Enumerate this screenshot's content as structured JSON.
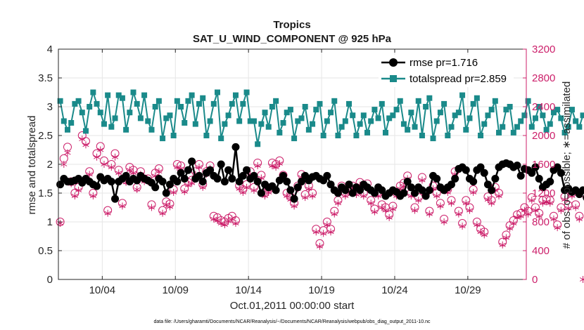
{
  "chart_data": {
    "type": "line",
    "title": "Tropics",
    "subtitle": "SAT_U_WIND_COMPONENT @ 925 hPa",
    "xlabel": "Oct.01,2011 00:00:00 start",
    "ylabel": "rmse and totalspread",
    "y2label": "# of obs: o=possible; ∗=assimilated",
    "footnote": "data file: /Users/gharamti/Documents/NCAR/Reanalysis/~/Documents/NCAR/Reanalysis/webpub/obs_diag_output_2011-10.nc",
    "x_tick_labels": [
      "10/04",
      "10/09",
      "10/14",
      "10/19",
      "10/24",
      "10/29"
    ],
    "x_ticks": [
      4,
      9,
      14,
      19,
      24,
      29
    ],
    "xlim": [
      1,
      33
    ],
    "ylim": [
      0,
      4
    ],
    "y_ticks": [
      0,
      0.5,
      1,
      1.5,
      2,
      2.5,
      3,
      3.5,
      4
    ],
    "y_tick_labels": [
      "0",
      "0.5",
      "1",
      "1.5",
      "2",
      "2.5",
      "3",
      "3.5",
      "4"
    ],
    "y2lim": [
      0,
      3200
    ],
    "y2_ticks": [
      0,
      400,
      800,
      1200,
      1600,
      2000,
      2400,
      2800,
      3200
    ],
    "y2_tick_labels": [
      "0",
      "400",
      "800",
      "1200",
      "1600",
      "2000",
      "2400",
      "2800",
      "3200"
    ],
    "grid": true,
    "legend_position": "top-right",
    "x_step_days": 0.25,
    "x_start_day": 1.125,
    "series": [
      {
        "name": "rmse pr=1.716",
        "axis": "left",
        "color": "#000000",
        "marker": "circle",
        "values": [
          1.65,
          1.75,
          1.7,
          1.7,
          1.72,
          1.75,
          1.68,
          1.75,
          1.7,
          1.65,
          1.62,
          1.78,
          1.72,
          1.75,
          1.7,
          1.4,
          1.7,
          1.75,
          1.8,
          1.7,
          1.75,
          1.72,
          1.8,
          1.75,
          1.72,
          1.68,
          1.6,
          1.75,
          1.7,
          1.5,
          1.65,
          1.75,
          1.7,
          1.85,
          1.75,
          1.9,
          2.05,
          1.75,
          1.8,
          1.7,
          1.85,
          1.9,
          1.8,
          1.75,
          2.0,
          1.7,
          1.9,
          1.75,
          2.3,
          1.7,
          1.8,
          1.9,
          1.75,
          1.8,
          1.7,
          1.5,
          1.65,
          1.6,
          1.62,
          1.55,
          1.72,
          1.8,
          1.7,
          1.55,
          1.4,
          1.6,
          1.7,
          1.8,
          1.72,
          1.78,
          1.8,
          1.75,
          1.72,
          1.8,
          1.65,
          1.55,
          1.5,
          1.6,
          1.55,
          1.65,
          1.5,
          1.6,
          1.55,
          1.65,
          1.6,
          1.55,
          1.5,
          1.6,
          1.55,
          1.45,
          1.5,
          1.55,
          1.52,
          1.45,
          1.5,
          1.7,
          1.6,
          1.5,
          1.6,
          1.55,
          1.45,
          1.55,
          1.8,
          1.75,
          1.6,
          1.55,
          1.6,
          1.65,
          1.75,
          1.92,
          1.95,
          1.9,
          1.75,
          1.7,
          1.9,
          1.95,
          1.85,
          1.65,
          1.55,
          1.75,
          1.95,
          2.0,
          2.02,
          2.0,
          1.95,
          1.98,
          1.8,
          1.92,
          1.9,
          1.85,
          1.95,
          1.75,
          1.6,
          1.65,
          1.7,
          1.9,
          1.95,
          1.85,
          1.55,
          1.58,
          1.52,
          1.55,
          1.48,
          1.55,
          1.42,
          1.38
        ]
      },
      {
        "name": "totalspread pr=2.859",
        "axis": "left",
        "color": "#1a8a8a",
        "marker": "square",
        "values": [
          3.1,
          2.75,
          2.6,
          2.72,
          3.05,
          3.1,
          2.9,
          2.58,
          3.0,
          3.25,
          3.05,
          2.9,
          2.7,
          3.2,
          2.65,
          2.8,
          3.2,
          3.15,
          2.6,
          2.9,
          3.25,
          3.05,
          2.8,
          3.2,
          2.75,
          2.6,
          3.0,
          3.1,
          2.45,
          2.8,
          2.85,
          2.5,
          3.1,
          3.0,
          2.72,
          3.1,
          3.2,
          2.7,
          3.05,
          3.15,
          2.5,
          2.75,
          3.05,
          3.25,
          2.45,
          2.7,
          2.85,
          3.05,
          3.2,
          2.75,
          3.05,
          3.25,
          2.75,
          2.75,
          2.35,
          2.7,
          2.9,
          2.65,
          3.0,
          3.1,
          2.55,
          2.72,
          2.9,
          2.95,
          2.45,
          2.75,
          2.8,
          3.0,
          2.6,
          2.7,
          2.95,
          3.05,
          2.5,
          2.75,
          2.9,
          3.1,
          2.5,
          2.65,
          2.75,
          3.05,
          2.85,
          2.5,
          2.7,
          2.85,
          2.55,
          2.75,
          2.95,
          2.8,
          3.05,
          2.55,
          2.8,
          2.85,
          2.95,
          3.1,
          2.7,
          2.6,
          2.9,
          2.65,
          3.1,
          2.5,
          3.0,
          3.15,
          2.45,
          2.75,
          2.9,
          3.05,
          2.5,
          2.65,
          2.85,
          2.9,
          3.2,
          2.6,
          2.8,
          3.05,
          3.15,
          2.5,
          2.7,
          2.85,
          2.95,
          3.1,
          2.55,
          2.65,
          2.95,
          3.0,
          2.55,
          2.65,
          2.75,
          2.85,
          3.1,
          2.65,
          2.8,
          3.0,
          2.85,
          2.6,
          2.7,
          2.9,
          2.95,
          2.8,
          2.55,
          2.65,
          2.95,
          2.75,
          2.65,
          2.85
        ]
      },
      {
        "name": "possible",
        "axis": "right",
        "color": "#cc1f6a",
        "marker": "circle-open",
        "values": [
          800,
          1680,
          1840,
          1360,
          1200,
          1280,
          2000,
          1920,
          1500,
          1200,
          1750,
          1850,
          1650,
          960,
          1600,
          1750,
          1520,
          1060,
          1380,
          1560,
          1520,
          1280,
          1500,
          1400,
          1400,
          1040,
          1480,
          1540,
          960,
          1080,
          1050,
          1250,
          1600,
          1580,
          1260,
          1350,
          1380,
          1500,
          1600,
          1320,
          1500,
          1580,
          880,
          860,
          820,
          800,
          850,
          880,
          820,
          1300,
          1250,
          1320,
          1500,
          1280,
          1620,
          1450,
          1200,
          1250,
          1620,
          1600,
          1650,
          1450,
          1200,
          1150,
          1060,
          1300,
          1460,
          1180,
          1300,
          1200,
          700,
          500,
          680,
          800,
          700,
          950,
          1100,
          1300,
          1200,
          1250,
          1300,
          1220,
          1350,
          1200,
          1330,
          1100,
          980,
          1200,
          1040,
          1000,
          900,
          1020,
          1200,
          1300,
          1340,
          1440,
          1200,
          1000,
          1140,
          1420,
          1200,
          950,
          1300,
          1200,
          1060,
          840,
          1250,
          1100,
          1500,
          950,
          780,
          1100,
          1000,
          1250,
          800,
          700,
          660,
          1150,
          1100,
          1280,
          1200,
          520,
          620,
          750,
          820,
          900,
          920,
          1000,
          950,
          1140,
          1000,
          920,
          1100,
          1120,
          1100,
          880,
          760,
          1000,
          1150,
          1030,
          1200,
          1040,
          880,
          1200
        ]
      },
      {
        "name": "assimilated",
        "axis": "right",
        "color": "#cc1f6a",
        "marker": "asterisk",
        "values": [
          780,
          1600,
          1760,
          1330,
          1160,
          1240,
          1950,
          1870,
          1460,
          1160,
          1700,
          1800,
          1600,
          920,
          1560,
          1700,
          1480,
          1020,
          1350,
          1520,
          1480,
          1250,
          1460,
          1360,
          1360,
          1000,
          1440,
          1500,
          920,
          1040,
          1010,
          1210,
          1560,
          1540,
          1220,
          1310,
          1340,
          1460,
          1560,
          1280,
          1460,
          1540,
          840,
          820,
          780,
          760,
          810,
          840,
          780,
          1260,
          1210,
          1280,
          1460,
          1240,
          1580,
          1410,
          1160,
          1210,
          1580,
          1560,
          1610,
          1410,
          1160,
          1110,
          1020,
          1260,
          1420,
          1140,
          1260,
          1160,
          660,
          460,
          640,
          760,
          660,
          910,
          1060,
          1260,
          1160,
          1210,
          1260,
          1180,
          1310,
          1160,
          1290,
          1060,
          940,
          1160,
          1000,
          960,
          860,
          980,
          1160,
          1260,
          1300,
          1400,
          1160,
          960,
          1100,
          1380,
          1160,
          910,
          1260,
          1160,
          1020,
          800,
          1210,
          1060,
          1460,
          910,
          740,
          1060,
          960,
          1210,
          760,
          660,
          620,
          1110,
          1060,
          1240,
          1160,
          480,
          580,
          710,
          780,
          860,
          880,
          960,
          910,
          1100,
          960,
          880,
          1060,
          1080,
          1060,
          840,
          720,
          960,
          1110,
          990,
          1160,
          1000,
          840,
          0
        ]
      }
    ]
  },
  "colors": {
    "rmse": "#000000",
    "spread": "#1a8a8a",
    "obs": "#cc1f6a",
    "grid": "#e6e6e6",
    "axis": "#262626"
  }
}
